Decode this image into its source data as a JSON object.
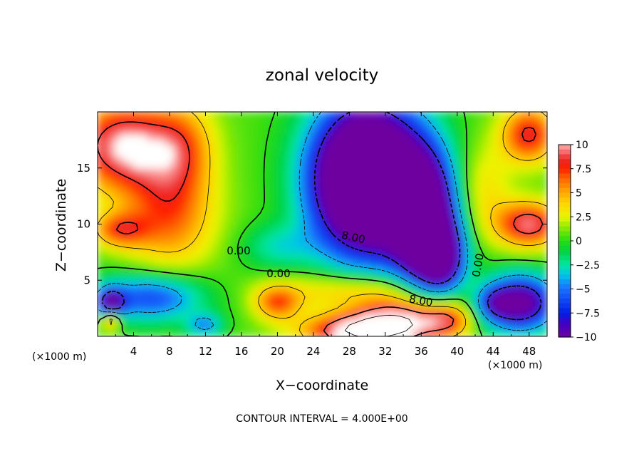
{
  "chart_data": {
    "type": "heatmap",
    "title": "zonal velocity",
    "xlabel": "X−coordinate",
    "ylabel": "Z−coordinate",
    "x_unit": "(×1000 m)",
    "y_unit": "(×1000 m)",
    "xlim": [
      0,
      50
    ],
    "ylim": [
      0,
      20
    ],
    "x_ticks": [
      "4",
      "8",
      "12",
      "16",
      "20",
      "24",
      "28",
      "32",
      "36",
      "40",
      "44",
      "48"
    ],
    "y_ticks": [
      "5",
      "10",
      "15"
    ],
    "colorbar": {
      "range": [
        -10,
        10
      ],
      "tick_labels": [
        "10",
        "7.5",
        "5",
        "2.5",
        "0",
        "−2.5",
        "−5",
        "−7.5",
        "−10"
      ]
    },
    "contour_labels": [
      "0.00",
      "0.00",
      "0.00",
      "8.00",
      "8.00"
    ],
    "footer": "CONTOUR INTERVAL = 4.000E+00"
  }
}
